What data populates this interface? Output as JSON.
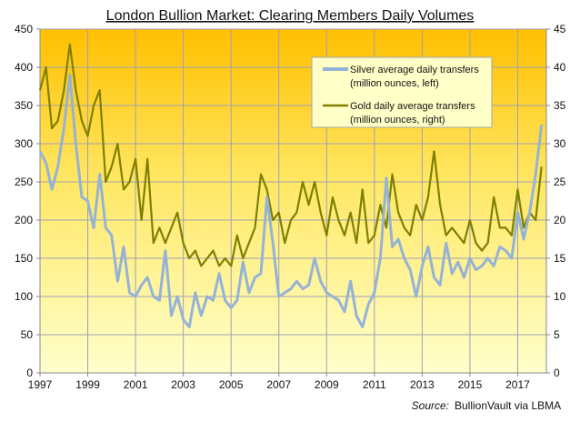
{
  "chart_data": {
    "type": "line",
    "title": "London Bullion Market: Clearing Members Daily Volumes",
    "x_start": 1997,
    "x_step_years": 0.25,
    "xlim": [
      1997,
      2018.2
    ],
    "x_ticks": [
      "1997",
      "1999",
      "2001",
      "2003",
      "2005",
      "2007",
      "2009",
      "2011",
      "2013",
      "2015",
      "2017"
    ],
    "y_left": {
      "lim": [
        0,
        450
      ],
      "ticks": [
        "0",
        "50",
        "100",
        "150",
        "200",
        "250",
        "300",
        "350",
        "400",
        "450"
      ]
    },
    "y_right": {
      "lim": [
        0,
        45
      ],
      "ticks": [
        "0",
        "5",
        "10",
        "15",
        "20",
        "25",
        "30",
        "35",
        "40",
        "45"
      ]
    },
    "grid": true,
    "legend_placement": "top-right",
    "series": [
      {
        "name": "Silver average daily transfers",
        "name2": "(million ounces, left)",
        "axis": "left",
        "color": "#95B3D7",
        "values": [
          290,
          275,
          240,
          270,
          320,
          390,
          300,
          230,
          225,
          190,
          260,
          190,
          180,
          120,
          165,
          105,
          100,
          115,
          125,
          100,
          95,
          160,
          75,
          100,
          70,
          60,
          105,
          75,
          100,
          95,
          130,
          95,
          85,
          95,
          145,
          105,
          125,
          130,
          230,
          170,
          100,
          105,
          110,
          120,
          110,
          115,
          150,
          120,
          105,
          100,
          95,
          80,
          120,
          75,
          60,
          90,
          105,
          150,
          255,
          165,
          175,
          150,
          135,
          100,
          140,
          165,
          125,
          115,
          170,
          130,
          145,
          125,
          150,
          135,
          140,
          150,
          140,
          165,
          160,
          150,
          210,
          175,
          210,
          260,
          325
        ]
      },
      {
        "name": "Gold daily average transfers",
        "name2": "(million ounces, right)",
        "axis": "right",
        "color": "#808000",
        "values": [
          37,
          40,
          32,
          33,
          37,
          43,
          37,
          33,
          31,
          35,
          37,
          25,
          27,
          30,
          24,
          25,
          28,
          20,
          28,
          17,
          19,
          17,
          19,
          21,
          17,
          15,
          16,
          14,
          15,
          16,
          14,
          15,
          14,
          18,
          15,
          17,
          19,
          26,
          24,
          20,
          21,
          17,
          20,
          21,
          25,
          22,
          25,
          21,
          18,
          23,
          20,
          18,
          21,
          17,
          24,
          17,
          18,
          22,
          19,
          26,
          21,
          19,
          18,
          22,
          20,
          23,
          29,
          22,
          18,
          19,
          18,
          17,
          20,
          17,
          16,
          17,
          23,
          19,
          19,
          18,
          24,
          19,
          21,
          20,
          27
        ]
      }
    ],
    "source_label": "Source:",
    "source_text": "BullionVault via LBMA"
  }
}
